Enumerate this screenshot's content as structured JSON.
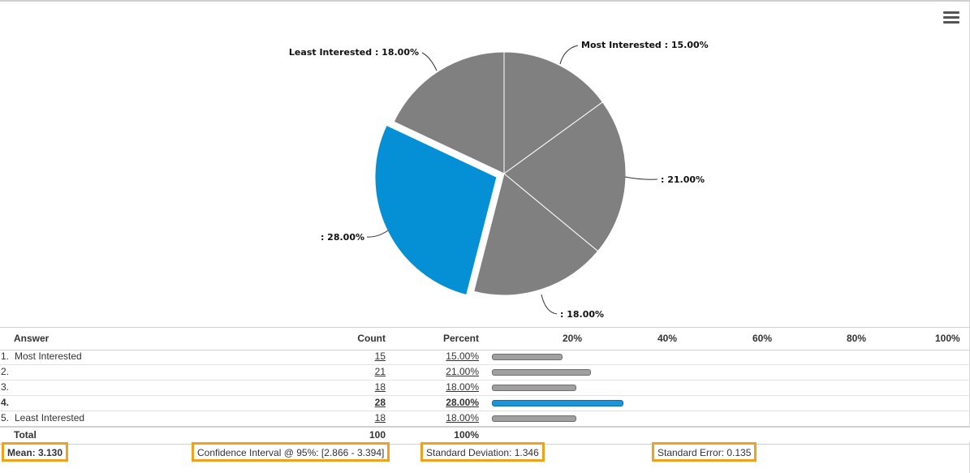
{
  "chart_data": {
    "type": "pie",
    "slices": [
      {
        "label": "Most Interested : 15.00%",
        "value": 15.0,
        "color": "#808080",
        "selected": false
      },
      {
        "label": ": 21.00%",
        "value": 21.0,
        "color": "#808080",
        "selected": false
      },
      {
        "label": ": 18.00%",
        "value": 18.0,
        "color": "#808080",
        "selected": false
      },
      {
        "label": ": 28.00%",
        "value": 28.0,
        "color": "#0590d6",
        "selected": true
      },
      {
        "label": "Least Interested : 18.00%",
        "value": 18.0,
        "color": "#808080",
        "selected": false
      }
    ]
  },
  "table": {
    "headers": {
      "answer": "Answer",
      "count": "Count",
      "percent": "Percent"
    },
    "scale": [
      "20%",
      "40%",
      "60%",
      "80%",
      "100%"
    ],
    "rows": [
      {
        "index": "1.",
        "answer": "Most Interested",
        "count": "15",
        "percent": "15.00%",
        "fraction": 0.15,
        "selected": false
      },
      {
        "index": "2.",
        "answer": "",
        "count": "21",
        "percent": "21.00%",
        "fraction": 0.21,
        "selected": false
      },
      {
        "index": "3.",
        "answer": "",
        "count": "18",
        "percent": "18.00%",
        "fraction": 0.18,
        "selected": false
      },
      {
        "index": "4.",
        "answer": "",
        "count": "28",
        "percent": "28.00%",
        "fraction": 0.28,
        "selected": true
      },
      {
        "index": "5.",
        "answer": "Least Interested",
        "count": "18",
        "percent": "18.00%",
        "fraction": 0.18,
        "selected": false
      }
    ],
    "total": {
      "label": "Total",
      "count": "100",
      "percent": "100%"
    }
  },
  "stats": {
    "mean": "Mean: 3.130",
    "confidence": "Confidence Interval @ 95%: [2.866 - 3.394]",
    "std_dev": "Standard Deviation: 1.346",
    "std_err": "Standard Error: 0.135"
  },
  "colors": {
    "highlight": "#f0a21e",
    "selected": "#0590d6",
    "slice": "#808080"
  }
}
